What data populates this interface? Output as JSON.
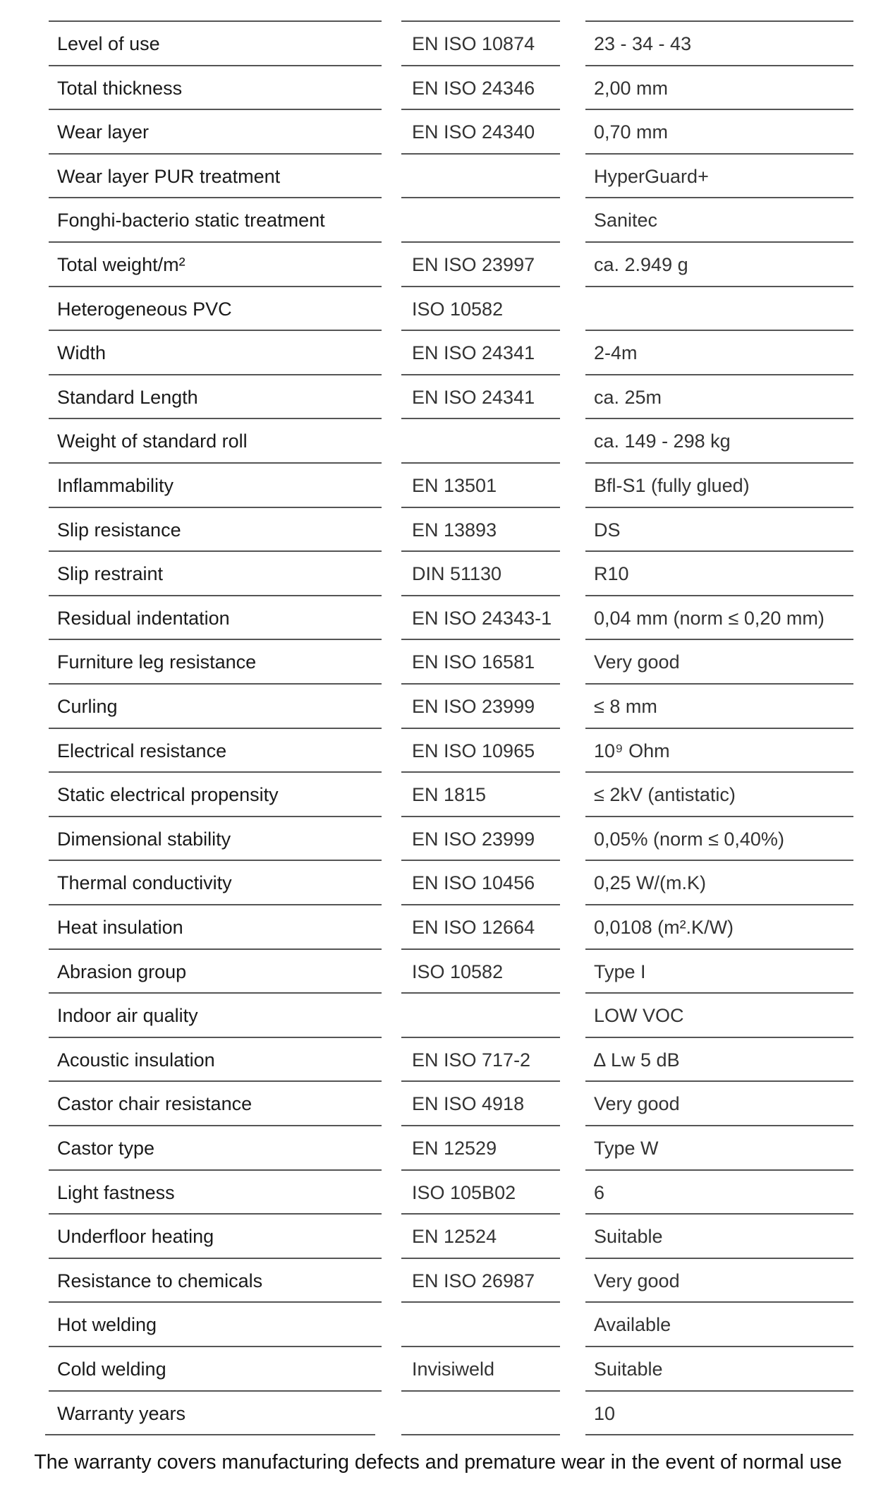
{
  "rows": [
    [
      "Level of use",
      "EN ISO 10874",
      "23 - 34 - 43"
    ],
    [
      "Total thickness",
      "EN ISO 24346",
      "2,00 mm"
    ],
    [
      "Wear layer",
      "EN ISO 24340",
      "0,70 mm"
    ],
    [
      "Wear layer PUR treatment",
      "",
      "HyperGuard+"
    ],
    [
      "Fonghi-bacterio static treatment",
      "",
      "Sanitec"
    ],
    [
      "Total weight/m²",
      "EN ISO 23997",
      "ca. 2.949 g"
    ],
    [
      "Heterogeneous PVC",
      "ISO 10582",
      ""
    ],
    [
      "Width",
      "EN ISO 24341",
      "2-4m"
    ],
    [
      "Standard Length",
      "EN ISO 24341",
      "ca. 25m"
    ],
    [
      "Weight of standard roll",
      "",
      "ca. 149 - 298 kg"
    ],
    [
      "Inflammability",
      "EN 13501",
      "Bfl-S1 (fully glued)"
    ],
    [
      "Slip resistance",
      "EN 13893",
      "DS"
    ],
    [
      "Slip restraint",
      "DIN 51130",
      "R10"
    ],
    [
      "Residual indentation",
      "EN ISO 24343-1",
      "0,04 mm (norm ≤ 0,20 mm)"
    ],
    [
      "Furniture leg resistance",
      "EN ISO 16581",
      "Very good"
    ],
    [
      "Curling",
      "EN ISO 23999",
      "≤ 8 mm"
    ],
    [
      "Electrical resistance",
      "EN ISO 10965",
      "10⁹ Ohm"
    ],
    [
      "Static electrical propensity",
      "EN 1815",
      "≤ 2kV (antistatic)"
    ],
    [
      "Dimensional stability",
      "EN ISO 23999",
      "0,05% (norm ≤ 0,40%)"
    ],
    [
      "Thermal conductivity",
      "EN ISO 10456",
      "0,25 W/(m.K)"
    ],
    [
      "Heat insulation",
      "EN ISO 12664",
      "0,0108 (m².K/W)"
    ],
    [
      "Abrasion group",
      "ISO 10582",
      "Type I"
    ],
    [
      "Indoor air quality",
      "",
      "LOW VOC"
    ],
    [
      "Acoustic insulation",
      "EN ISO 717-2",
      "∆ Lw 5 dB"
    ],
    [
      "Castor chair resistance",
      "EN ISO 4918",
      "Very good"
    ],
    [
      "Castor type",
      "EN 12529",
      "Type W"
    ],
    [
      "Light fastness",
      "ISO 105B02",
      "6"
    ],
    [
      "Underfloor heating",
      "EN 12524",
      "Suitable"
    ],
    [
      "Resistance to chemicals",
      "EN ISO 26987",
      "Very good"
    ],
    [
      "Hot welding",
      "",
      "Available"
    ],
    [
      "Cold welding",
      "Invisiweld",
      "Suitable"
    ],
    [
      "Warranty years",
      "",
      "10"
    ]
  ],
  "footer": "The warranty covers manufacturing defects and premature wear in the event of normal use"
}
